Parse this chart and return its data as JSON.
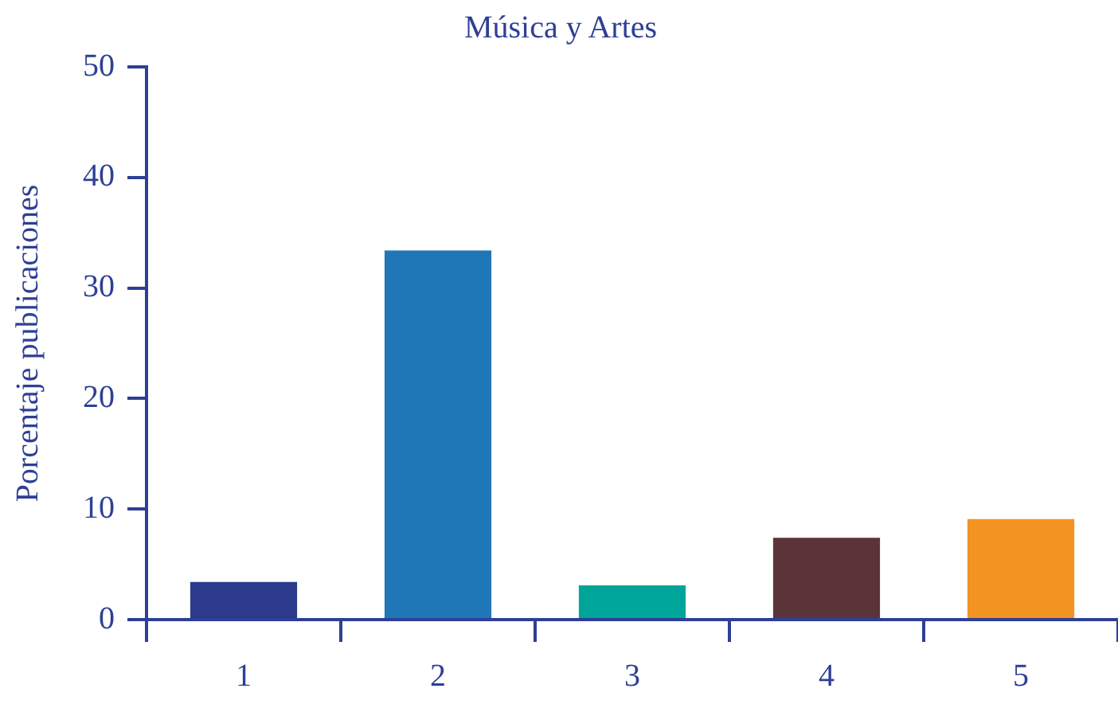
{
  "chart_data": {
    "type": "bar",
    "title": "Música y Artes",
    "ylabel": "Porcentaje publicaciones",
    "categories": [
      "1",
      "2",
      "3",
      "4",
      "5"
    ],
    "values": [
      3.4,
      33.4,
      3.1,
      7.4,
      9.1
    ],
    "colors": [
      "#2b3a8c",
      "#2077b8",
      "#00a59a",
      "#5b3439",
      "#f39321"
    ],
    "ylim": [
      0,
      50
    ],
    "yticks": [
      0,
      10,
      20,
      30,
      40,
      50
    ],
    "grid": false,
    "legend": false
  }
}
